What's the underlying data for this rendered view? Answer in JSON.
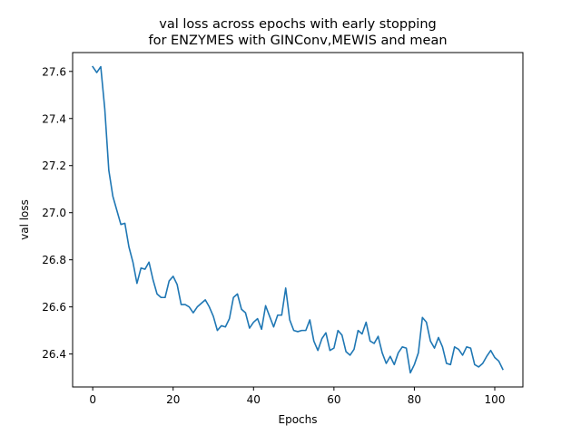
{
  "chart_data": {
    "type": "line",
    "title_line1": "val loss across epochs with early stopping",
    "title_line2": "for ENZYMES with GINConv,MEWIS and mean",
    "xlabel": "Epochs",
    "ylabel": "val loss",
    "xlim": [
      -5,
      107
    ],
    "ylim": [
      26.26,
      27.68
    ],
    "xticks": [
      0,
      20,
      40,
      60,
      80,
      100
    ],
    "yticks": [
      26.4,
      26.6,
      26.8,
      27.0,
      27.2,
      27.4,
      27.6
    ],
    "ytick_labels": [
      "26.4",
      "26.6",
      "26.8",
      "27.0",
      "27.2",
      "27.4",
      "27.6"
    ],
    "grid": false,
    "legend": "none",
    "line_color": "#1f77b4",
    "series": [
      {
        "x": [
          0,
          1,
          2,
          3,
          4,
          5,
          6,
          7,
          8,
          9,
          10,
          11,
          12,
          13,
          14,
          15,
          16,
          17,
          18,
          19,
          20,
          21,
          22,
          23,
          24,
          25,
          26,
          27,
          28,
          29,
          30,
          31,
          32,
          33,
          34,
          35,
          36,
          37,
          38,
          39,
          40,
          41,
          42,
          43,
          44,
          45,
          46,
          47,
          48,
          49,
          50,
          51,
          52,
          53,
          54,
          55,
          56,
          57,
          58,
          59,
          60,
          61,
          62,
          63,
          64,
          65,
          66,
          67,
          68,
          69,
          70,
          71,
          72,
          73,
          74,
          75,
          76,
          77,
          78,
          79,
          80,
          81,
          82,
          83,
          84,
          85,
          86,
          87,
          88,
          89,
          90,
          91,
          92,
          93,
          94,
          95,
          96,
          97,
          98,
          99,
          100,
          101,
          102
        ],
        "y": [
          27.62,
          27.595,
          27.62,
          27.44,
          27.18,
          27.07,
          27.01,
          26.95,
          26.955,
          26.855,
          26.79,
          26.7,
          26.765,
          26.76,
          26.79,
          26.715,
          26.655,
          26.64,
          26.64,
          26.71,
          26.73,
          26.695,
          26.61,
          26.61,
          26.6,
          26.575,
          26.6,
          26.615,
          26.63,
          26.6,
          26.56,
          26.5,
          26.52,
          26.515,
          26.55,
          26.64,
          26.655,
          26.59,
          26.575,
          26.51,
          26.535,
          26.55,
          26.505,
          26.605,
          26.56,
          26.515,
          26.565,
          26.565,
          26.68,
          26.545,
          26.5,
          26.495,
          26.5,
          26.5,
          26.545,
          26.455,
          26.415,
          26.465,
          26.49,
          26.415,
          26.425,
          26.5,
          26.48,
          26.41,
          26.395,
          26.42,
          26.5,
          26.485,
          26.535,
          26.455,
          26.445,
          26.475,
          26.405,
          26.36,
          26.39,
          26.355,
          26.405,
          26.43,
          26.425,
          26.32,
          26.355,
          26.405,
          26.555,
          26.535,
          26.455,
          26.425,
          26.47,
          26.43,
          26.36,
          26.355,
          26.43,
          26.42,
          26.395,
          26.43,
          26.425,
          26.355,
          26.345,
          26.36,
          26.39,
          26.415,
          26.385,
          26.37,
          26.335
        ]
      }
    ]
  }
}
